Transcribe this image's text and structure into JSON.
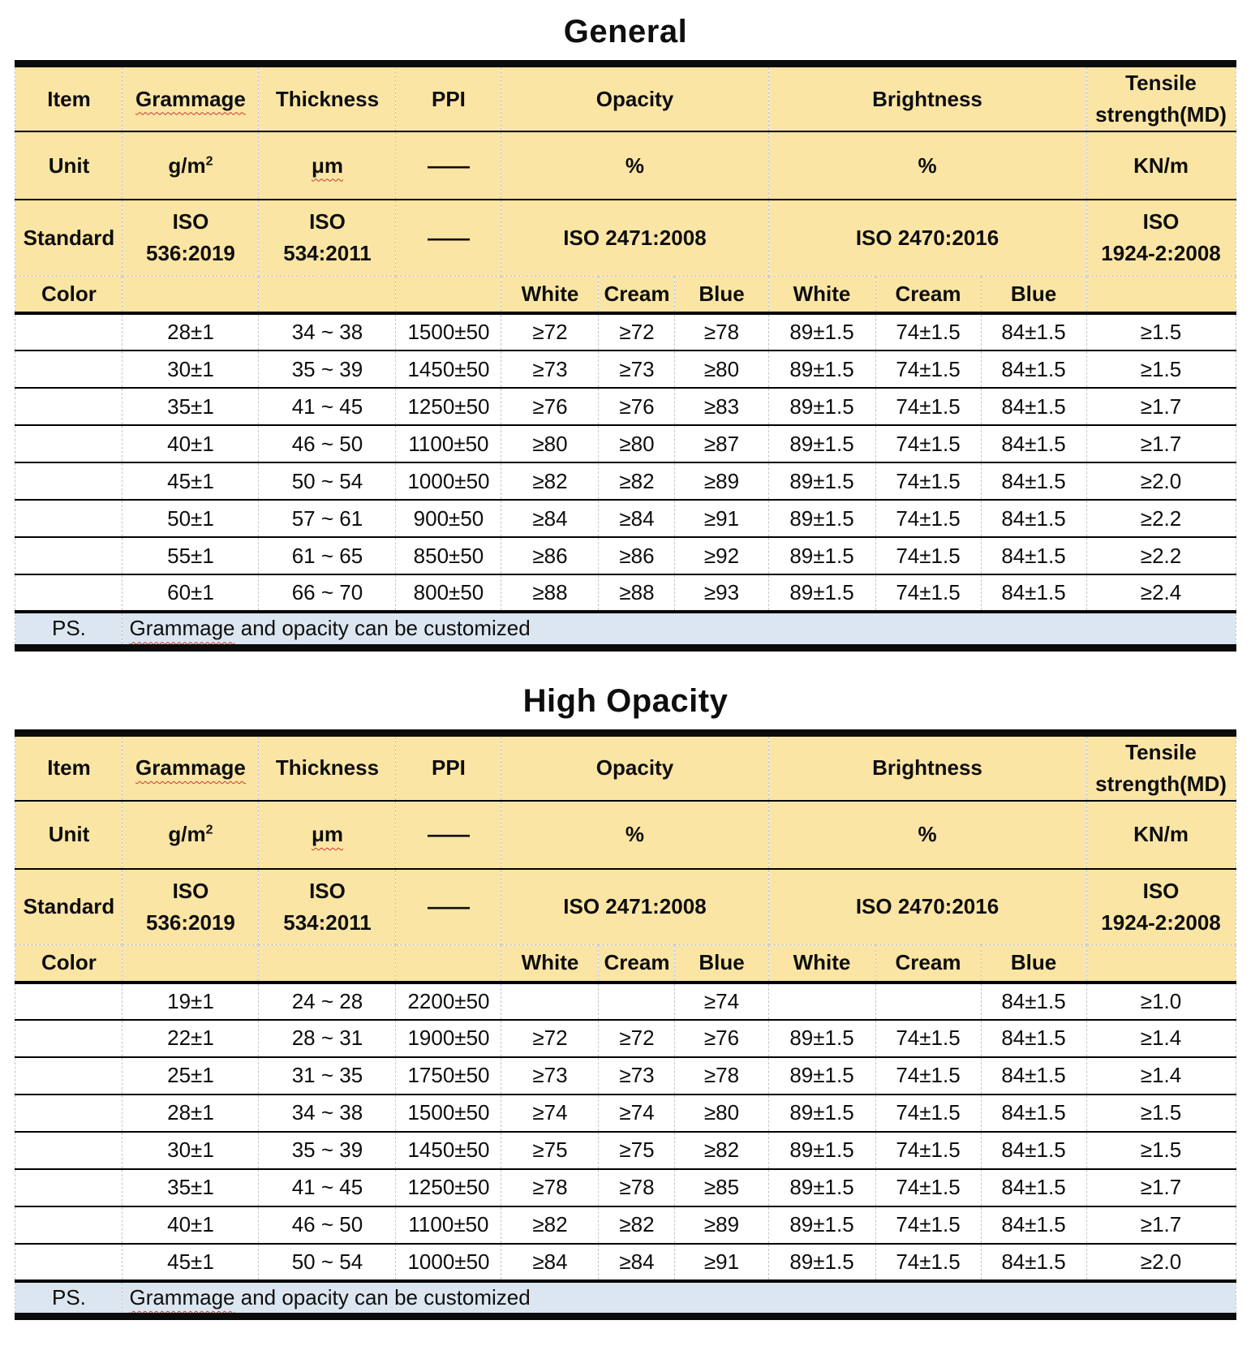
{
  "colors": {
    "header_bg": "#FBE5A4",
    "ps_bg": "#DCE6F1",
    "grid": "#C5C5C5",
    "squiggle": "#C8372D",
    "line": "#000000"
  },
  "tables": [
    {
      "title": "General",
      "head": {
        "item": "Item",
        "grammage": "Grammage",
        "thickness": "Thickness",
        "ppi": "PPI",
        "opacity": "Opacity",
        "brightness": "Brightness",
        "tensile_l1": "Tensile",
        "tensile_l2": "strength(MD)"
      },
      "unit": {
        "label": "Unit",
        "grammage_base": "g/m",
        "grammage_sup": "2",
        "thickness": "μm",
        "ppi": "——",
        "opacity": "%",
        "brightness": "%",
        "tensile": "KN/m"
      },
      "standard": {
        "label": "Standard",
        "grammage_l1": "ISO",
        "grammage_l2": "536:2019",
        "thickness_l1": "ISO",
        "thickness_l2": "534:2011",
        "ppi": "——",
        "opacity": "ISO 2471:2008",
        "brightness": "ISO 2470:2016",
        "tensile_l1": "ISO",
        "tensile_l2": "1924-2:2008"
      },
      "color_row": {
        "label": "Color",
        "op_white": "White",
        "op_cream": "Cream",
        "op_blue": "Blue",
        "br_white": "White",
        "br_cream": "Cream",
        "br_blue": "Blue"
      },
      "rows": [
        [
          "",
          "28±1",
          "34 ~ 38",
          "1500±50",
          "≥72",
          "≥72",
          "≥78",
          "89±1.5",
          "74±1.5",
          "84±1.5",
          "≥1.5"
        ],
        [
          "",
          "30±1",
          "35 ~ 39",
          "1450±50",
          "≥73",
          "≥73",
          "≥80",
          "89±1.5",
          "74±1.5",
          "84±1.5",
          "≥1.5"
        ],
        [
          "",
          "35±1",
          "41 ~ 45",
          "1250±50",
          "≥76",
          "≥76",
          "≥83",
          "89±1.5",
          "74±1.5",
          "84±1.5",
          "≥1.7"
        ],
        [
          "",
          "40±1",
          "46 ~ 50",
          "1100±50",
          "≥80",
          "≥80",
          "≥87",
          "89±1.5",
          "74±1.5",
          "84±1.5",
          "≥1.7"
        ],
        [
          "",
          "45±1",
          "50 ~ 54",
          "1000±50",
          "≥82",
          "≥82",
          "≥89",
          "89±1.5",
          "74±1.5",
          "84±1.5",
          "≥2.0"
        ],
        [
          "",
          "50±1",
          "57 ~ 61",
          "900±50",
          "≥84",
          "≥84",
          "≥91",
          "89±1.5",
          "74±1.5",
          "84±1.5",
          "≥2.2"
        ],
        [
          "",
          "55±1",
          "61 ~ 65",
          "850±50",
          "≥86",
          "≥86",
          "≥92",
          "89±1.5",
          "74±1.5",
          "84±1.5",
          "≥2.2"
        ],
        [
          "",
          "60±1",
          "66 ~ 70",
          "800±50",
          "≥88",
          "≥88",
          "≥93",
          "89±1.5",
          "74±1.5",
          "84±1.5",
          "≥2.4"
        ]
      ],
      "ps": {
        "label": "PS.",
        "note_underlined": "Grammage",
        "note_rest": " and opacity can be customized"
      }
    },
    {
      "title": "High Opacity",
      "head": {
        "item": "Item",
        "grammage": "Grammage",
        "thickness": "Thickness",
        "ppi": "PPI",
        "opacity": "Opacity",
        "brightness": "Brightness",
        "tensile_l1": "Tensile",
        "tensile_l2": "strength(MD)"
      },
      "unit": {
        "label": "Unit",
        "grammage_base": "g/m",
        "grammage_sup": "2",
        "thickness": "μm",
        "ppi": "——",
        "opacity": "%",
        "brightness": "%",
        "tensile": "KN/m"
      },
      "standard": {
        "label": "Standard",
        "grammage_l1": "ISO",
        "grammage_l2": "536:2019",
        "thickness_l1": "ISO",
        "thickness_l2": "534:2011",
        "ppi": "——",
        "opacity": "ISO 2471:2008",
        "brightness": "ISO 2470:2016",
        "tensile_l1": "ISO",
        "tensile_l2": "1924-2:2008"
      },
      "color_row": {
        "label": "Color",
        "op_white": "White",
        "op_cream": "Cream",
        "op_blue": "Blue",
        "br_white": "White",
        "br_cream": "Cream",
        "br_blue": "Blue"
      },
      "rows": [
        [
          "",
          "19±1",
          "24 ~ 28",
          "2200±50",
          "",
          "",
          "≥74",
          "",
          "",
          "84±1.5",
          "≥1.0"
        ],
        [
          "",
          "22±1",
          "28 ~ 31",
          "1900±50",
          "≥72",
          "≥72",
          "≥76",
          "89±1.5",
          "74±1.5",
          "84±1.5",
          "≥1.4"
        ],
        [
          "",
          "25±1",
          "31 ~ 35",
          "1750±50",
          "≥73",
          "≥73",
          "≥78",
          "89±1.5",
          "74±1.5",
          "84±1.5",
          "≥1.4"
        ],
        [
          "",
          "28±1",
          "34 ~ 38",
          "1500±50",
          "≥74",
          "≥74",
          "≥80",
          "89±1.5",
          "74±1.5",
          "84±1.5",
          "≥1.5"
        ],
        [
          "",
          "30±1",
          "35 ~ 39",
          "1450±50",
          "≥75",
          "≥75",
          "≥82",
          "89±1.5",
          "74±1.5",
          "84±1.5",
          "≥1.5"
        ],
        [
          "",
          "35±1",
          "41 ~ 45",
          "1250±50",
          "≥78",
          "≥78",
          "≥85",
          "89±1.5",
          "74±1.5",
          "84±1.5",
          "≥1.7"
        ],
        [
          "",
          "40±1",
          "46 ~ 50",
          "1100±50",
          "≥82",
          "≥82",
          "≥89",
          "89±1.5",
          "74±1.5",
          "84±1.5",
          "≥1.7"
        ],
        [
          "",
          "45±1",
          "50 ~ 54",
          "1000±50",
          "≥84",
          "≥84",
          "≥91",
          "89±1.5",
          "74±1.5",
          "84±1.5",
          "≥2.0"
        ]
      ],
      "ps": {
        "label": "PS.",
        "note_underlined": "Grammage",
        "note_rest": " and opacity can be customized"
      }
    }
  ]
}
